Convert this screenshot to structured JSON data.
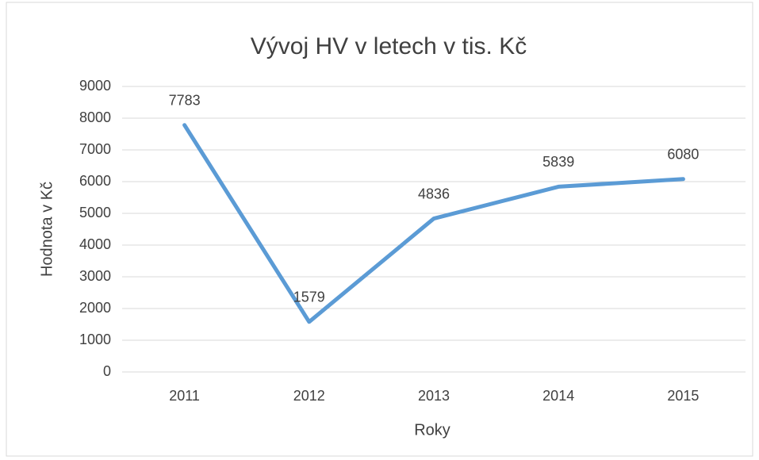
{
  "chart_data": {
    "type": "line",
    "title": "Vývoj HV v letech v tis. Kč",
    "x_label": "Roky",
    "y_label": "Hodnota v Kč",
    "categories": [
      "2011",
      "2012",
      "2013",
      "2014",
      "2015"
    ],
    "series": [
      {
        "name": "HV",
        "color": "#5b9bd5",
        "values": [
          7783,
          1579,
          4836,
          5839,
          6080
        ]
      }
    ],
    "ylim": [
      0,
      9000
    ],
    "yticks": [
      0,
      1000,
      2000,
      3000,
      4000,
      5000,
      6000,
      7000,
      8000,
      9000
    ],
    "grid": true,
    "data_labels": true,
    "legend": false
  }
}
